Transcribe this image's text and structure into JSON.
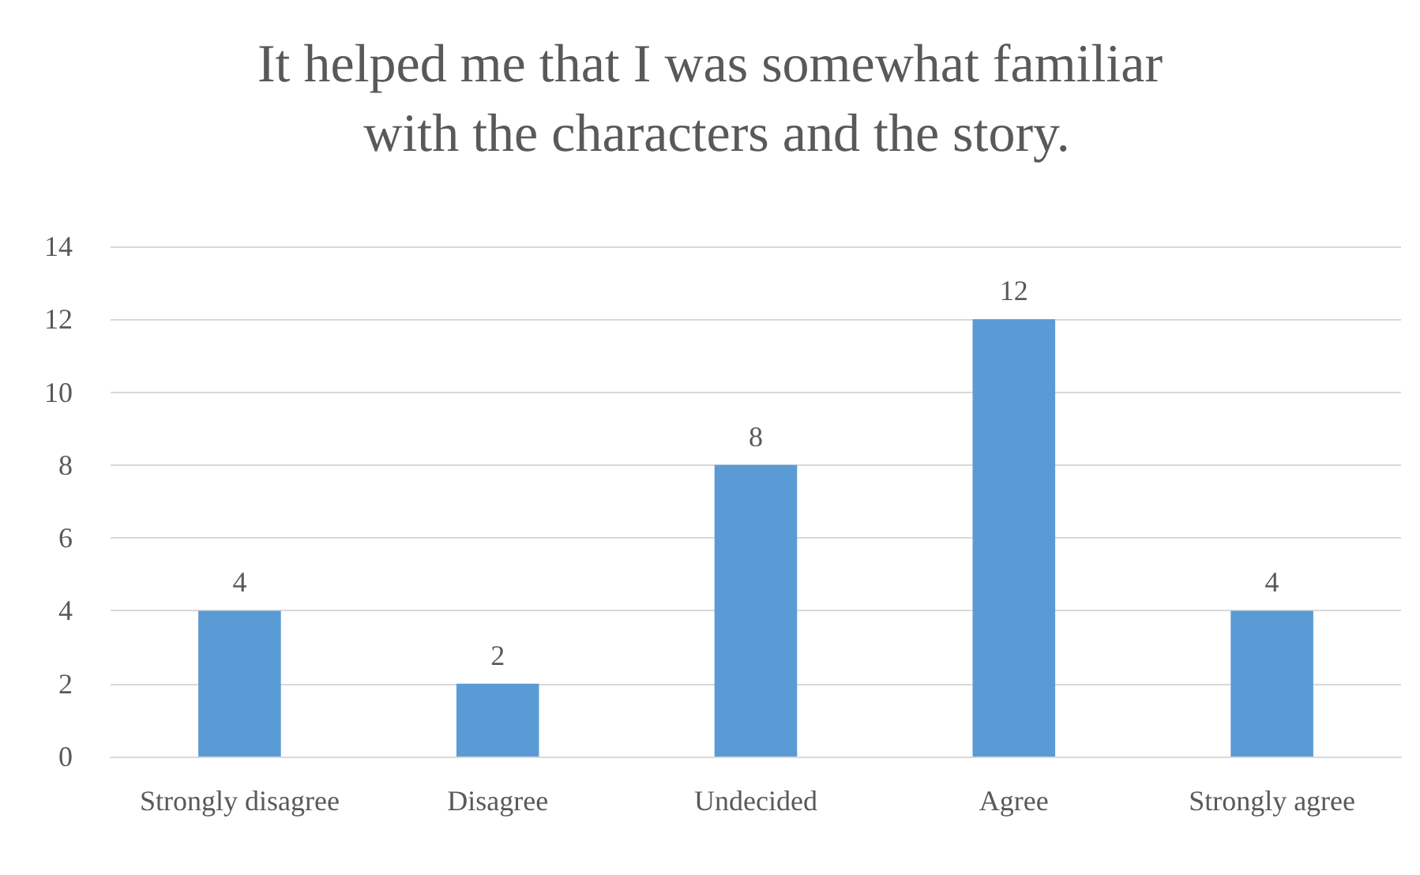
{
  "chart_data": {
    "type": "bar",
    "title": "It helped me that I was somewhat familiar with the characters and the story.",
    "categories": [
      "Strongly disagree",
      "Disagree",
      "Undecided",
      "Agree",
      "Strongly agree"
    ],
    "values": [
      4,
      2,
      8,
      12,
      4
    ],
    "color": "#5b9bd5",
    "ylim": [
      0,
      14
    ],
    "yticks": [
      0,
      2,
      4,
      6,
      8,
      10,
      12,
      14
    ],
    "grid": "y",
    "data_labels": true
  }
}
